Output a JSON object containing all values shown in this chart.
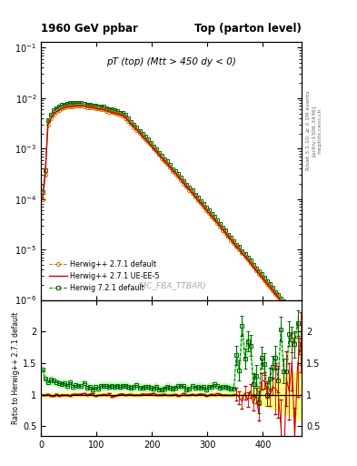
{
  "title_left": "1960 GeV ppbar",
  "title_right": "Top (parton level)",
  "main_label": "pT (top) (Mtt > 450 dy < 0)",
  "watermark": "(MC_FBA_TTBAR)",
  "right_label1": "Rivet 3.1.10; ≥ 3.1M events",
  "right_label2": "[arXiv:1306.3436]",
  "right_label3": "mcplots.cern.ch",
  "ylabel_ratio": "Ratio to Herwig++ 2.7.1 default",
  "xlim": [
    0,
    470
  ],
  "ylim_main": [
    1e-06,
    0.13
  ],
  "ylim_ratio": [
    0.35,
    2.5
  ],
  "ratio_yticks": [
    0.5,
    1.0,
    1.5,
    2.0
  ],
  "legend_entries": [
    {
      "label": "Herwig++ 2.7.1 default",
      "color": "#cc7700",
      "linestyle": "--",
      "marker": "o"
    },
    {
      "label": "Herwig++ 2.7.1 UE-EE-5",
      "color": "#cc0000",
      "linestyle": "-",
      "marker": null
    },
    {
      "label": "Herwig 7.2.1 default",
      "color": "#006600",
      "linestyle": "--",
      "marker": "s"
    }
  ],
  "background_color": "#ffffff"
}
